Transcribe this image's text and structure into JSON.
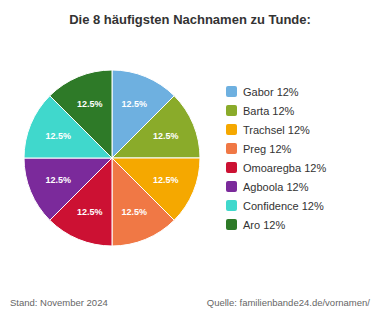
{
  "chart_data": {
    "type": "pie",
    "title": "Die 8 häufigsten Nachnamen zu Tunde:",
    "categories": [
      "Gabor 12%",
      "Barta 12%",
      "Trachsel 12%",
      "Preg 12%",
      "Omoaregba 12%",
      "Agboola 12%",
      "Confidence 12%",
      "Aro 12%"
    ],
    "values": [
      12.5,
      12.5,
      12.5,
      12.5,
      12.5,
      12.5,
      12.5,
      12.5
    ],
    "value_labels": [
      "12.5%",
      "12.5%",
      "12.5%",
      "12.5%",
      "12.5%",
      "12.5%",
      "12.5%",
      "12.5%"
    ],
    "colors": [
      "#6EB0E0",
      "#8AAB2A",
      "#F5A800",
      "#F07845",
      "#CC1133",
      "#7B2A9B",
      "#40D8CC",
      "#2E7A28"
    ],
    "data_labels": true,
    "legend": "right",
    "annotations": [
      "Stand: November 2024",
      "Quelle: familienbande24.de/vornamen/"
    ]
  }
}
